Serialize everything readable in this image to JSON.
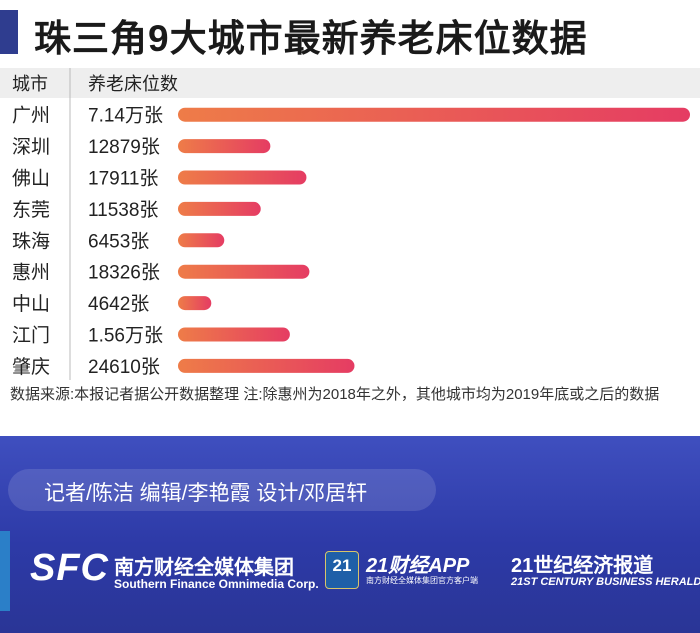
{
  "title": "珠三角9大城市最新养老床位数据",
  "chart_data": {
    "type": "bar",
    "orientation": "horizontal",
    "header": {
      "category": "城市",
      "value": "养老床位数"
    },
    "categories": [
      "广州",
      "深圳",
      "佛山",
      "东莞",
      "珠海",
      "惠州",
      "中山",
      "江门",
      "肇庆"
    ],
    "values": [
      71400,
      12879,
      17911,
      11538,
      6453,
      18326,
      4642,
      15600,
      24610
    ],
    "value_labels": [
      "7.14万张",
      "12879张",
      "17911张",
      "11538张",
      "6453张",
      "18326张",
      "4642张",
      "1.56万张",
      "24610张"
    ],
    "xlim": [
      0,
      71400
    ],
    "colors": {
      "bar_start": "#ee7c48",
      "bar_end": "#e53c63"
    }
  },
  "note": "数据来源:本报记者据公开数据整理 注:除惠州为2018年之外，其他城市均为2019年底或之后的数据",
  "footer": {
    "credits": "记者/陈洁  编辑/李艳霞  设计/邓居轩",
    "logos": {
      "sfc_mark": "SFC",
      "sfc_name_cn": "南方财经全媒体集团",
      "sfc_name_en": "Southern Finance Omnimedia Corp.",
      "app_badge": "21",
      "app_name": "21财经APP",
      "app_sub": "南方财经全媒体集团官方客户端",
      "herald_cn": "21世纪经济报道",
      "herald_en": "21ST CENTURY BUSINESS HERALD"
    }
  }
}
